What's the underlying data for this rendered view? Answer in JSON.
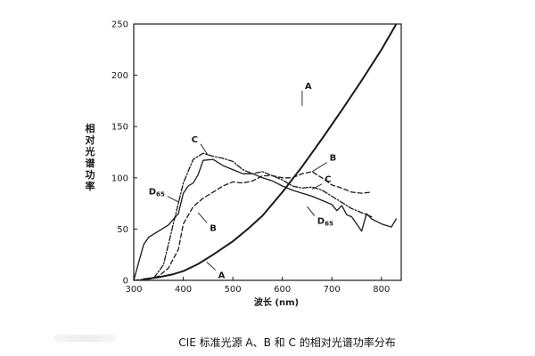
{
  "caption": "CIE 标准光源 A、B 和 C 的相对光谱功率分布",
  "chart_data": {
    "type": "line",
    "title": "",
    "xlabel": "波长 (nm)",
    "ylabel": "相对光谱功率",
    "xlim": [
      300,
      840
    ],
    "ylim": [
      0,
      250
    ],
    "xticks": [
      300,
      400,
      500,
      600,
      700,
      800
    ],
    "yticks": [
      0,
      50,
      100,
      150,
      200,
      250
    ],
    "grid": false,
    "legend": "none (curves labeled directly)",
    "series": [
      {
        "name": "A",
        "style": "solid-thick",
        "x": [
          320,
          350,
          380,
          400,
          430,
          460,
          500,
          530,
          560,
          600,
          640,
          680,
          720,
          760,
          800,
          830
        ],
        "y": [
          1,
          3,
          6,
          9,
          16,
          25,
          38,
          50,
          63,
          86,
          111,
          138,
          166,
          195,
          225,
          250
        ]
      },
      {
        "name": "B",
        "style": "dash",
        "x": [
          300,
          330,
          350,
          370,
          390,
          400,
          420,
          440,
          460,
          480,
          500,
          520,
          540,
          560,
          580,
          600,
          620,
          640,
          660,
          680,
          700,
          720,
          740,
          760,
          780
        ],
        "y": [
          0,
          1,
          4,
          12,
          30,
          55,
          72,
          80,
          86,
          92,
          96,
          95,
          97,
          102,
          102,
          100,
          100,
          104,
          106,
          100,
          93,
          90,
          86,
          85,
          86
        ]
      },
      {
        "name": "C",
        "style": "dash-dot",
        "x": [
          300,
          340,
          360,
          380,
          400,
          420,
          440,
          460,
          480,
          500,
          520,
          540,
          560,
          580,
          600,
          620,
          640,
          660,
          680,
          700,
          720,
          740,
          760,
          780
        ],
        "y": [
          0,
          2,
          15,
          55,
          95,
          118,
          124,
          121,
          119,
          116,
          108,
          104,
          106,
          102,
          98,
          92,
          90,
          91,
          88,
          82,
          76,
          70,
          66,
          62
        ]
      },
      {
        "name": "D65",
        "style": "solid",
        "x": [
          300,
          320,
          330,
          350,
          370,
          390,
          400,
          410,
          420,
          430,
          440,
          460,
          480,
          500,
          520,
          540,
          560,
          580,
          600,
          620,
          640,
          660,
          680,
          700,
          710,
          720,
          730,
          740,
          750,
          760,
          770,
          780,
          800,
          820,
          830
        ],
        "y": [
          0,
          35,
          42,
          48,
          54,
          65,
          85,
          92,
          95,
          103,
          117,
          118,
          112,
          108,
          104,
          104,
          100,
          97,
          92,
          88,
          85,
          82,
          78,
          74,
          68,
          73,
          64,
          62,
          55,
          48,
          65,
          60,
          55,
          52,
          60
        ]
      }
    ],
    "labels": [
      {
        "text": "A",
        "series": "A",
        "x": 640,
        "y": 185,
        "ax": 640,
        "ay": 170
      },
      {
        "text": "B",
        "series": "B",
        "x": 690,
        "y": 115,
        "ax": 660,
        "ay": 106
      },
      {
        "text": "C",
        "series": "C",
        "x": 435,
        "y": 133,
        "ax": 450,
        "ay": 122
      },
      {
        "text": "C",
        "series": "C",
        "x": 680,
        "y": 94,
        "ax": 660,
        "ay": 89
      },
      {
        "text": "B",
        "series": "B",
        "x": 448,
        "y": 56,
        "ax": 430,
        "ay": 66
      },
      {
        "text": "A",
        "series": "A",
        "x": 465,
        "y": 10,
        "ax": 447,
        "ay": 18
      },
      {
        "text": "D65",
        "series": "D65",
        "x": 368,
        "y": 82,
        "ax": 392,
        "ay": 76
      },
      {
        "text": "D65",
        "series": "D65",
        "x": 665,
        "y": 63,
        "ax": 650,
        "ay": 72
      }
    ]
  }
}
